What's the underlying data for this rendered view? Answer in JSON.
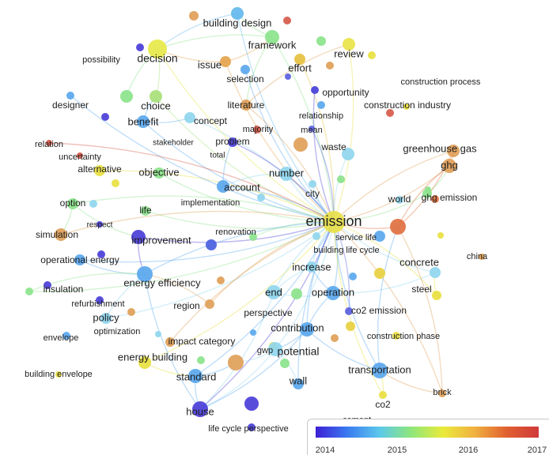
{
  "legend": {
    "ticks": [
      "2014",
      "2015",
      "2016",
      "2017"
    ],
    "colors": [
      "#3d1fd6",
      "#3a7bf0",
      "#5cc8ec",
      "#8ee77a",
      "#eaea3a",
      "#f0b040",
      "#e06030",
      "#d03a3a"
    ]
  },
  "labels": [
    {
      "id": "building_design",
      "text": "building design"
    },
    {
      "id": "framework",
      "text": "framework"
    },
    {
      "id": "possibility",
      "text": "possibility"
    },
    {
      "id": "decision",
      "text": "decision"
    },
    {
      "id": "issue",
      "text": "issue"
    },
    {
      "id": "effort",
      "text": "effort"
    },
    {
      "id": "review",
      "text": "review"
    },
    {
      "id": "selection",
      "text": "selection"
    },
    {
      "id": "opportunity",
      "text": "opportunity"
    },
    {
      "id": "construction_process",
      "text": "construction process"
    },
    {
      "id": "designer",
      "text": "designer"
    },
    {
      "id": "choice",
      "text": "choice"
    },
    {
      "id": "literature",
      "text": "literature"
    },
    {
      "id": "construction_industry",
      "text": "construction industry"
    },
    {
      "id": "relationship",
      "text": "relationship"
    },
    {
      "id": "benefit",
      "text": "benefit"
    },
    {
      "id": "concept",
      "text": "concept"
    },
    {
      "id": "majority",
      "text": "majority"
    },
    {
      "id": "mean",
      "text": "mean"
    },
    {
      "id": "relation",
      "text": "relation"
    },
    {
      "id": "stakeholder",
      "text": "stakeholder"
    },
    {
      "id": "problem",
      "text": "problem"
    },
    {
      "id": "waste",
      "text": "waste"
    },
    {
      "id": "greenhouse_gas",
      "text": "greenhouse gas"
    },
    {
      "id": "uncertainty",
      "text": "uncertainty"
    },
    {
      "id": "total",
      "text": "total"
    },
    {
      "id": "ghg",
      "text": "ghg"
    },
    {
      "id": "alternative",
      "text": "alternative"
    },
    {
      "id": "objective",
      "text": "objective"
    },
    {
      "id": "number",
      "text": "number"
    },
    {
      "id": "account",
      "text": "account"
    },
    {
      "id": "city",
      "text": "city"
    },
    {
      "id": "world",
      "text": "world"
    },
    {
      "id": "ghg_emission",
      "text": "ghg emission"
    },
    {
      "id": "option",
      "text": "option"
    },
    {
      "id": "implementation",
      "text": "implementation"
    },
    {
      "id": "life",
      "text": "life"
    },
    {
      "id": "emission",
      "text": "emission"
    },
    {
      "id": "respect",
      "text": "respect"
    },
    {
      "id": "simulation",
      "text": "simulation"
    },
    {
      "id": "renovation",
      "text": "renovation"
    },
    {
      "id": "service_life",
      "text": "service life"
    },
    {
      "id": "improvement",
      "text": "improvement"
    },
    {
      "id": "building_life_cycle",
      "text": "building life cycle"
    },
    {
      "id": "china",
      "text": "china"
    },
    {
      "id": "operational_energy",
      "text": "operational energy"
    },
    {
      "id": "concrete",
      "text": "concrete"
    },
    {
      "id": "increase",
      "text": "increase"
    },
    {
      "id": "energy_efficiency",
      "text": "energy efficiency"
    },
    {
      "id": "insulation",
      "text": "insulation"
    },
    {
      "id": "end",
      "text": "end"
    },
    {
      "id": "operation",
      "text": "operation"
    },
    {
      "id": "steel",
      "text": "steel"
    },
    {
      "id": "refurbishment",
      "text": "refurbishment"
    },
    {
      "id": "region",
      "text": "region"
    },
    {
      "id": "co2_emission",
      "text": "co2 emission"
    },
    {
      "id": "policy",
      "text": "policy"
    },
    {
      "id": "perspective",
      "text": "perspective"
    },
    {
      "id": "optimization",
      "text": "optimization"
    },
    {
      "id": "contribution",
      "text": "contribution"
    },
    {
      "id": "envelope",
      "text": "envelope"
    },
    {
      "id": "construction_phase",
      "text": "construction phase"
    },
    {
      "id": "impact_category",
      "text": "impact category"
    },
    {
      "id": "gwp",
      "text": "gwp"
    },
    {
      "id": "potential",
      "text": "potential"
    },
    {
      "id": "energy_building",
      "text": "energy building"
    },
    {
      "id": "transportation",
      "text": "transportation"
    },
    {
      "id": "building_envelope",
      "text": "building envelope"
    },
    {
      "id": "standard",
      "text": "standard"
    },
    {
      "id": "wall",
      "text": "wall"
    },
    {
      "id": "brick",
      "text": "brick"
    },
    {
      "id": "co2",
      "text": "co2"
    },
    {
      "id": "house",
      "text": "house"
    },
    {
      "id": "cement",
      "text": "cement"
    },
    {
      "id": "life_cycle_perspective",
      "text": "life cycle perspective"
    }
  ]
}
